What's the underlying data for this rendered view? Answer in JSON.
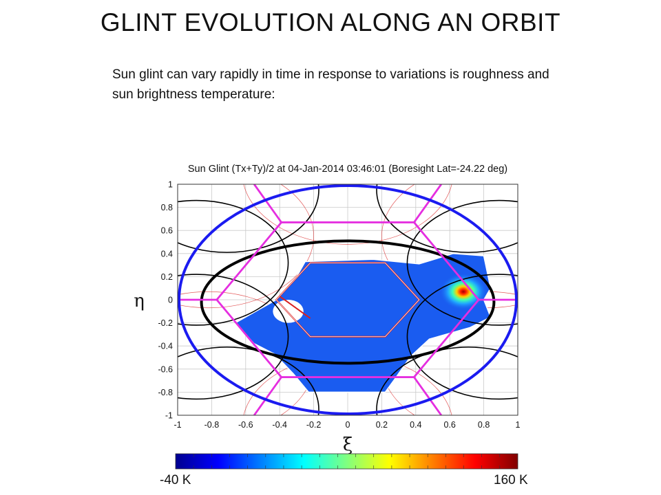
{
  "slide": {
    "title": "GLINT EVOLUTION ALONG AN ORBIT",
    "description": "Sun glint can vary rapidly in time in response to variations is roughness and sun brightness temperature:"
  },
  "chart_data": {
    "type": "heatmap",
    "title": "Sun Glint (Tx+Ty)/2 at 04-Jan-2014 03:46:01 (Boresight Lat=-24.22 deg)",
    "xlabel": "ξ",
    "ylabel": "η",
    "xlim": [
      -1,
      1
    ],
    "ylim": [
      -1,
      1
    ],
    "xticks": [
      -1,
      -0.8,
      -0.6,
      -0.4,
      -0.2,
      0,
      0.2,
      0.4,
      0.6,
      0.8,
      1
    ],
    "yticks": [
      -1,
      -0.8,
      -0.6,
      -0.4,
      -0.2,
      0,
      0.2,
      0.4,
      0.6,
      0.8,
      1
    ],
    "grid": true,
    "colorbar": {
      "min_label": "-40 K",
      "max_label": "160 K",
      "min": -40,
      "max": 160,
      "colormap": "jet"
    },
    "background_value_label": "near -40 K (blue)",
    "glint_peak": {
      "xi": 0.68,
      "eta": 0.07,
      "value_label": "160 K (dark red)"
    },
    "void_spot": {
      "xi": -0.35,
      "eta": -0.1
    },
    "colors": {
      "outer_ellipse": "#1b1bf0",
      "alias_hexagon": "#e52ee0",
      "black_curves": "#000000",
      "red_curves": "#d92020",
      "field_blue": "#1a5cf0"
    }
  }
}
